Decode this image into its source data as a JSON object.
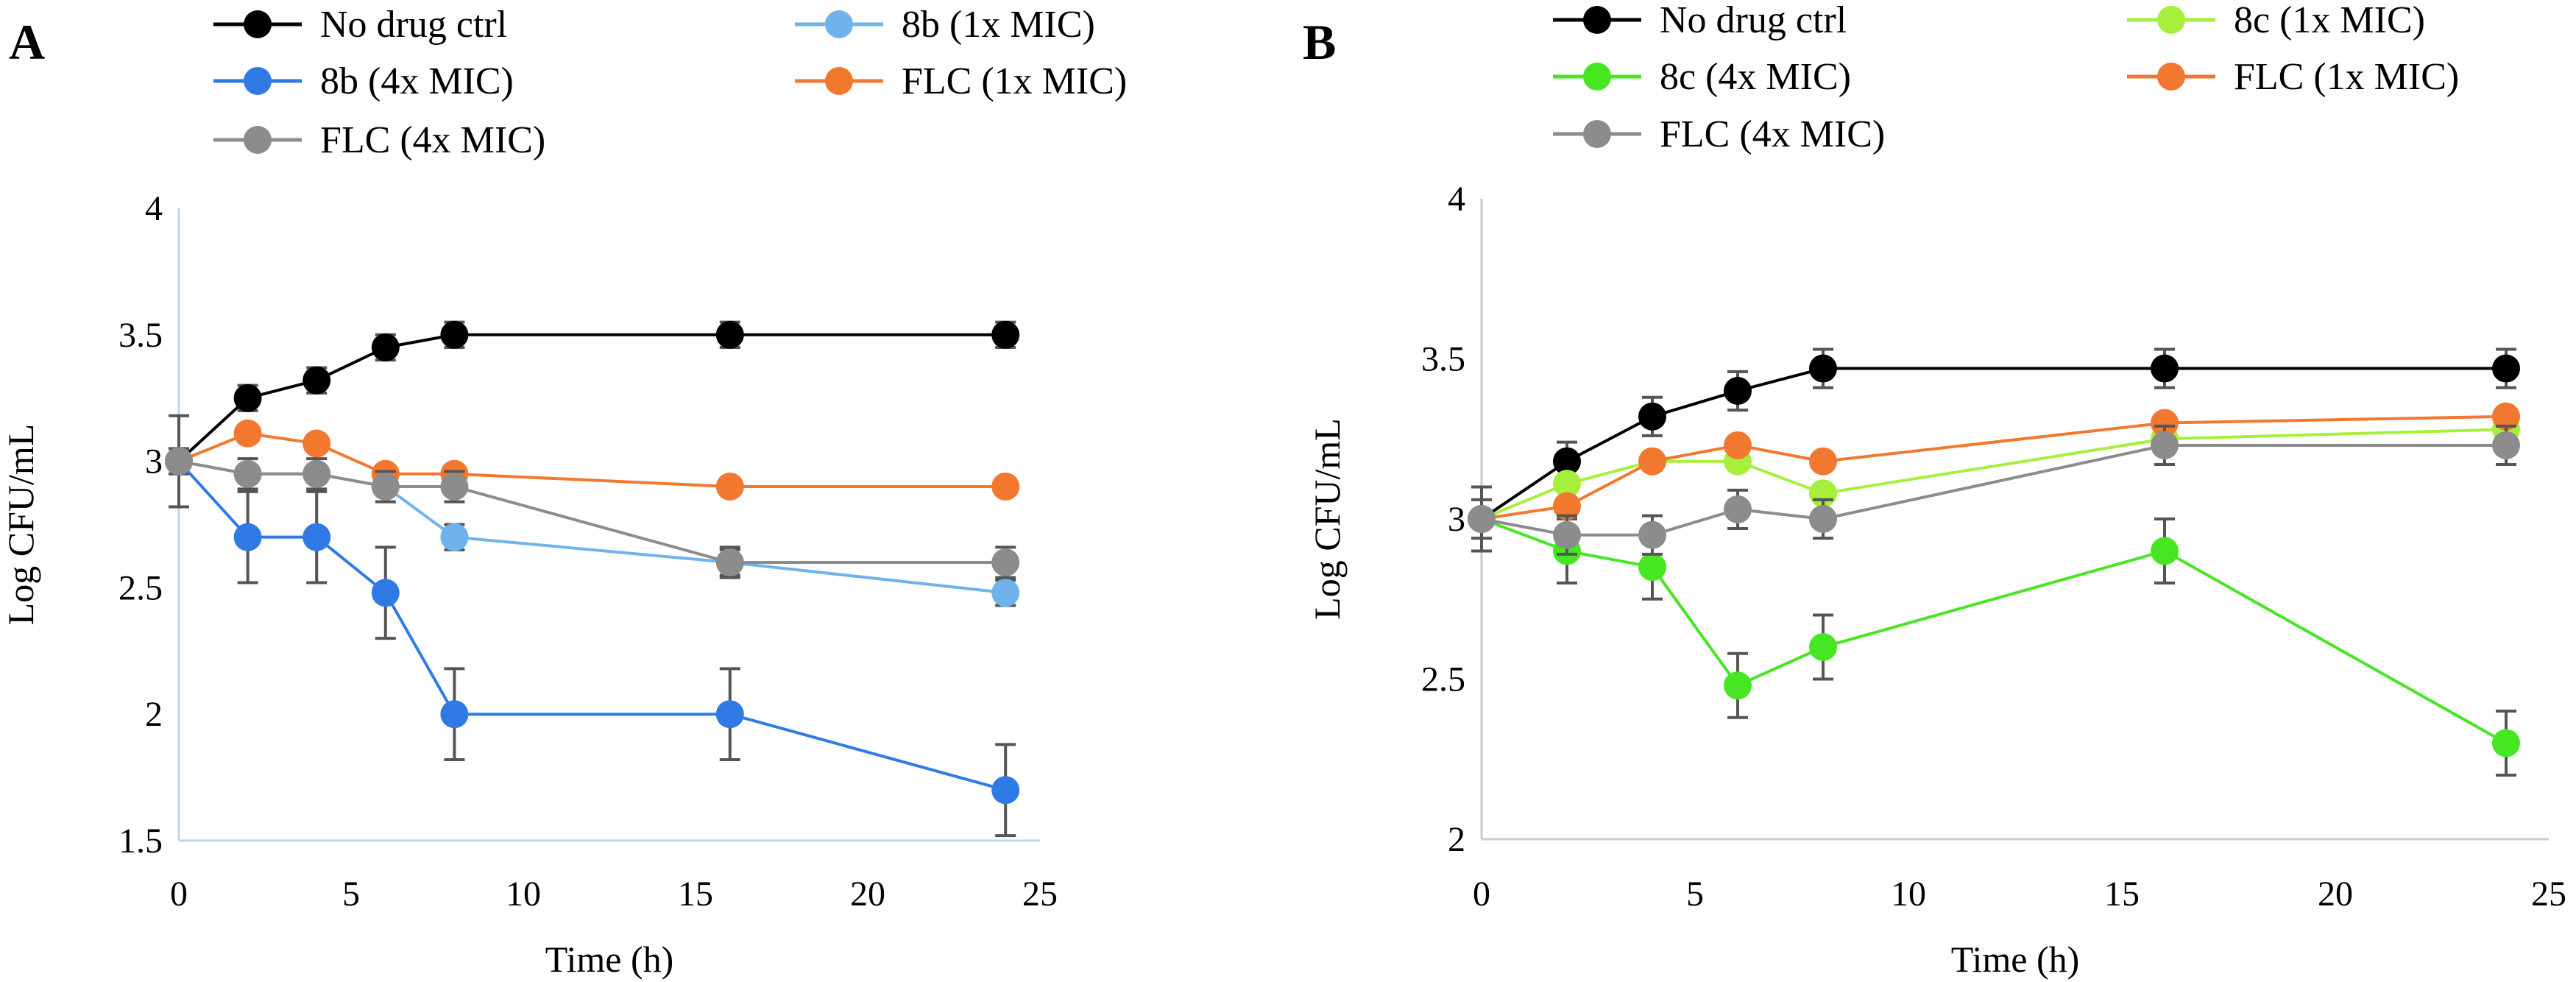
{
  "chart_data": [
    {
      "type": "line",
      "panel_label": "A",
      "title": "",
      "xlabel": "Time (h)",
      "ylabel": "Log CFU/mL",
      "xlim": [
        0,
        25
      ],
      "ylim": [
        1.5,
        4
      ],
      "xticks": [
        "0",
        "5",
        "10",
        "15",
        "20",
        "25"
      ],
      "yticks": [
        "1.5",
        "2",
        "2.5",
        "3",
        "3.5",
        "4"
      ],
      "grid": false,
      "legend_position": "top",
      "x": [
        0,
        2,
        4,
        6,
        8,
        16,
        24
      ],
      "series": [
        {
          "name": "No drug ctrl",
          "color": "#000000",
          "values": [
            3.0,
            3.25,
            3.32,
            3.45,
            3.5,
            3.5,
            3.5
          ],
          "error": [
            0.05,
            0.05,
            0.05,
            0.05,
            0.05,
            0.05,
            0.05
          ]
        },
        {
          "name": "8b (1x MIC)",
          "color": "#6fb3ec",
          "values": [
            3.0,
            2.95,
            2.95,
            2.9,
            2.7,
            2.6,
            2.48
          ],
          "error": [
            0.0,
            0.0,
            0.0,
            0.0,
            0.05,
            0.05,
            0.05
          ]
        },
        {
          "name": "8b (4x MIC)",
          "color": "#2f7ae5",
          "values": [
            3.0,
            2.7,
            2.7,
            2.48,
            2.0,
            2.0,
            1.7
          ],
          "error": [
            0.18,
            0.18,
            0.18,
            0.18,
            0.18,
            0.18,
            0.18
          ]
        },
        {
          "name": "FLC (1x MIC)",
          "color": "#f2782f",
          "values": [
            3.0,
            3.11,
            3.07,
            2.95,
            2.95,
            2.9,
            2.9
          ],
          "error": [
            0.0,
            0.0,
            0.0,
            0.0,
            0.0,
            0.0,
            0.0
          ]
        },
        {
          "name": "FLC (4x MIC)",
          "color": "#8c8c8c",
          "values": [
            3.0,
            2.95,
            2.95,
            2.9,
            2.9,
            2.6,
            2.6
          ],
          "error": [
            0.0,
            0.06,
            0.06,
            0.06,
            0.06,
            0.06,
            0.06
          ]
        }
      ]
    },
    {
      "type": "line",
      "panel_label": "B",
      "title": "",
      "xlabel": "Time (h)",
      "ylabel": "Log CFU/mL",
      "xlim": [
        0,
        25
      ],
      "ylim": [
        2,
        4
      ],
      "xticks": [
        "0",
        "5",
        "10",
        "15",
        "20",
        "25"
      ],
      "yticks": [
        "2",
        "2.5",
        "3",
        "3.5",
        "4"
      ],
      "grid": false,
      "legend_position": "top",
      "x": [
        0,
        2,
        4,
        6,
        8,
        16,
        24
      ],
      "series": [
        {
          "name": "No drug ctrl",
          "color": "#000000",
          "values": [
            3.0,
            3.18,
            3.32,
            3.4,
            3.47,
            3.47,
            3.47
          ],
          "error": [
            0.06,
            0.06,
            0.06,
            0.06,
            0.06,
            0.06,
            0.06
          ]
        },
        {
          "name": "8c (1x MIC)",
          "color": "#a6f03c",
          "values": [
            3.0,
            3.11,
            3.18,
            3.18,
            3.08,
            3.25,
            3.28
          ],
          "error": [
            0.0,
            0.0,
            0.0,
            0.0,
            0.0,
            0.0,
            0.0
          ]
        },
        {
          "name": "8c (4x MIC)",
          "color": "#46e622",
          "values": [
            3.0,
            2.9,
            2.85,
            2.48,
            2.6,
            2.9,
            2.3
          ],
          "error": [
            0.1,
            0.1,
            0.1,
            0.1,
            0.1,
            0.1,
            0.1
          ]
        },
        {
          "name": "FLC (1x MIC)",
          "color": "#f2782f",
          "values": [
            3.0,
            3.04,
            3.18,
            3.23,
            3.18,
            3.3,
            3.32
          ],
          "error": [
            0.0,
            0.0,
            0.0,
            0.0,
            0.0,
            0.0,
            0.0
          ]
        },
        {
          "name": "FLC (4x MIC)",
          "color": "#8c8c8c",
          "values": [
            3.0,
            2.95,
            2.95,
            3.03,
            3.0,
            3.23,
            3.23
          ],
          "error": [
            0.0,
            0.06,
            0.06,
            0.06,
            0.06,
            0.06,
            0.06
          ]
        }
      ]
    }
  ]
}
